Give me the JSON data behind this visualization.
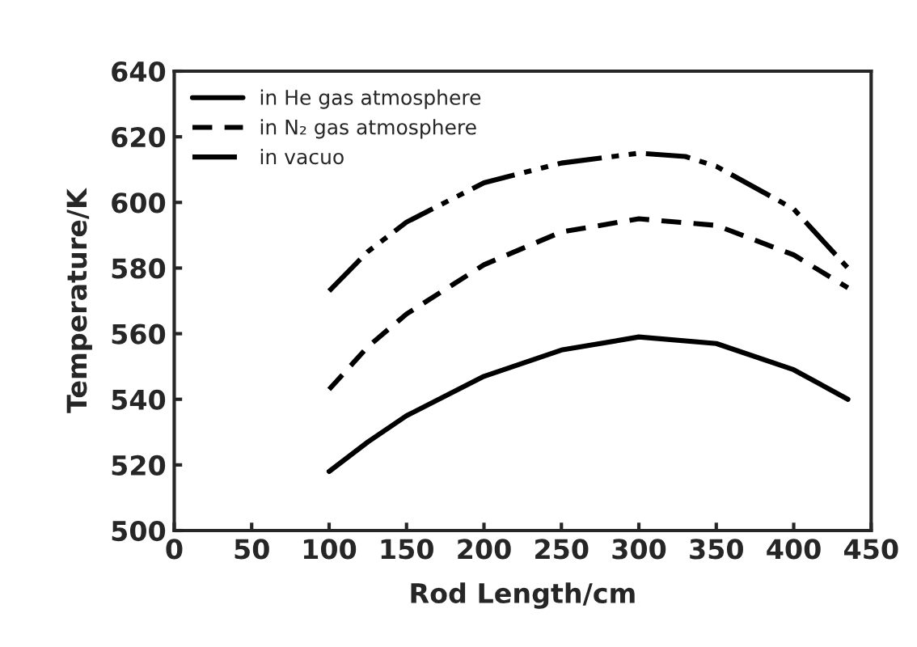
{
  "chart_data": {
    "type": "line",
    "xlabel": "Rod Length/cm",
    "ylabel": "Temperature/K",
    "xlim": [
      0,
      450
    ],
    "xticks": [
      0,
      50,
      100,
      150,
      200,
      250,
      300,
      350,
      400,
      450
    ],
    "ylim": [
      500,
      640
    ],
    "yticks": [
      500,
      520,
      540,
      560,
      580,
      600,
      620,
      640
    ],
    "grid": false,
    "legend": "top left",
    "marker": "none",
    "series": [
      {
        "name": "in He gas atmosphere",
        "color": "#000000",
        "line_style": "solid",
        "x": [
          100,
          125,
          150,
          200,
          250,
          300,
          350,
          400,
          435
        ],
        "values": [
          518,
          527,
          535,
          547,
          555,
          559,
          557,
          549,
          540
        ]
      },
      {
        "name": "in N₂ gas atmosphere",
        "color": "#000000",
        "line_style": "dashed",
        "x": [
          100,
          125,
          150,
          200,
          250,
          300,
          350,
          400,
          435
        ],
        "values": [
          543,
          556,
          566,
          581,
          591,
          595,
          593,
          584,
          574
        ]
      },
      {
        "name": "in vacuo",
        "color": "#000000",
        "line_style": "dashdot",
        "x": [
          100,
          125,
          150,
          200,
          250,
          300,
          330,
          350,
          400,
          435
        ],
        "values": [
          573,
          585,
          594,
          606,
          612,
          615,
          614,
          611,
          598,
          580
        ]
      }
    ]
  }
}
